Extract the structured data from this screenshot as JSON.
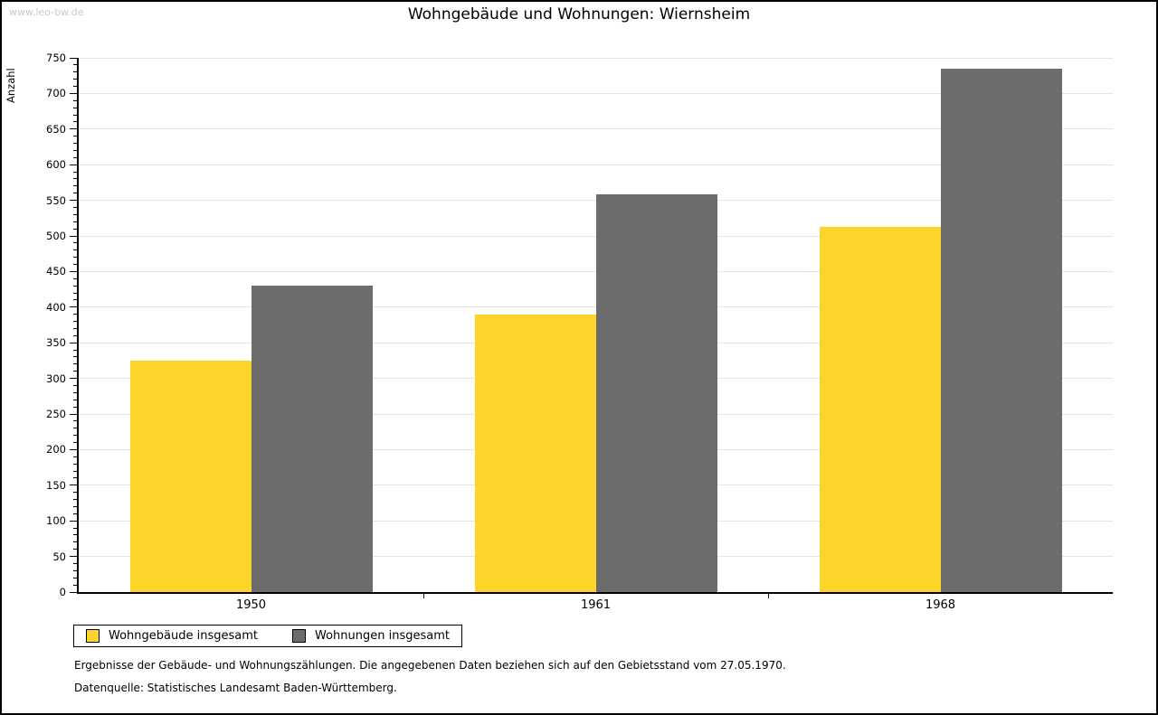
{
  "watermark": "www.leo-bw.de",
  "title": "Wohngebäude und Wohnungen: Wiernsheim",
  "ylabel": "Anzahl",
  "legend": [
    {
      "label": "Wohngebäude insgesamt",
      "color": "#FCD42A"
    },
    {
      "label": "Wohnungen insgesamt",
      "color": "#6C6C6C"
    }
  ],
  "footnotes": [
    "Ergebnisse der Gebäude- und Wohnungszählungen. Die angegebenen Daten beziehen sich auf den Gebietsstand vom 27.05.1970.",
    "Datenquelle: Statistisches Landesamt Baden-Württemberg."
  ],
  "colors": {
    "series_yellow": "#FCD42A",
    "series_gray": "#6C6C6C",
    "gridline": "#E4E4E4",
    "watermark": "#C9C9C9",
    "axis": "#000000"
  },
  "chart_data": {
    "type": "bar",
    "title": "Wohngebäude und Wohnungen: Wiernsheim",
    "categories": [
      "1950",
      "1961",
      "1968"
    ],
    "series": [
      {
        "name": "Wohngebäude insgesamt",
        "color": "#FCD42A",
        "values": [
          325,
          390,
          513
        ]
      },
      {
        "name": "Wohnungen insgesamt",
        "color": "#6C6C6C",
        "values": [
          430,
          558,
          735
        ]
      }
    ],
    "xlabel": "",
    "ylabel": "Anzahl",
    "ylim": [
      0,
      750
    ],
    "ytick_major": 50,
    "ytick_minor": 10,
    "grid": true,
    "legend_position": "bottom-left"
  }
}
